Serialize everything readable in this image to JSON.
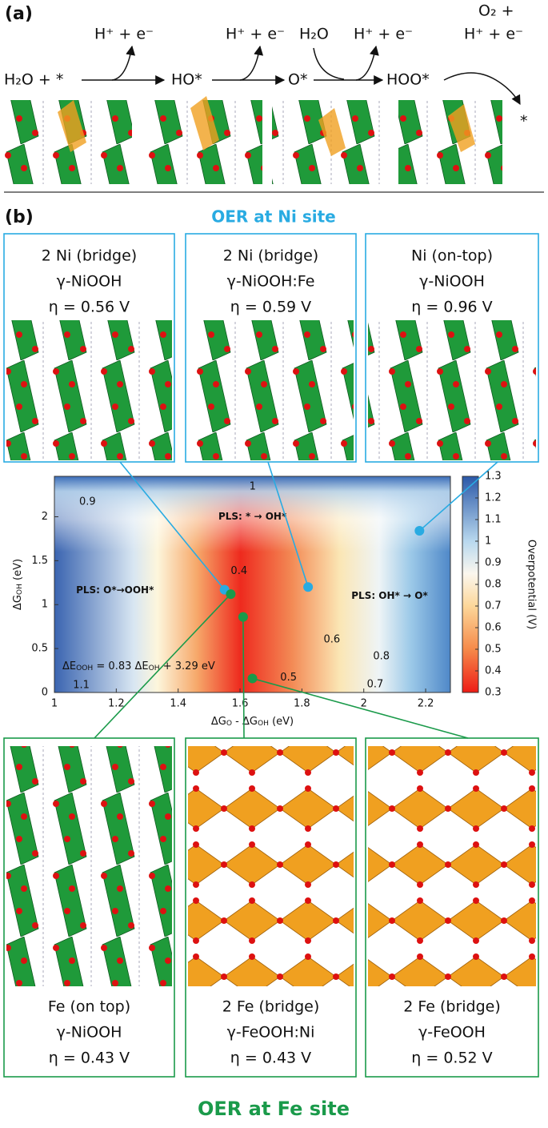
{
  "panel_a": {
    "label": "(a)",
    "texts": [
      "H₂O + *",
      "H⁺ + e⁻",
      "HO*",
      "H⁺ + e⁻",
      "O*",
      "H₂O",
      "H⁺ + e⁻",
      "HOO*",
      "O₂ +",
      "H⁺ + e⁻",
      "*"
    ]
  },
  "panel_b": {
    "label": "(b)",
    "ni_title": "OER at Ni site",
    "fe_title": "OER at Fe site",
    "ni_sites": [
      {
        "site": "2 Ni (bridge)",
        "material": "γ-NiOOH",
        "overpotential": "η = 0.56 V"
      },
      {
        "site": "2 Ni (bridge)",
        "material": "γ-NiOOH:Fe",
        "overpotential": "η = 0.59 V"
      },
      {
        "site": "Ni (on-top)",
        "material": "γ-NiOOH",
        "overpotential": "η = 0.96 V"
      }
    ],
    "fe_sites": [
      {
        "site": "Fe (on top)",
        "material": "γ-NiOOH",
        "overpotential": "η = 0.43 V"
      },
      {
        "site": "2 Fe (bridge)",
        "material": "γ-FeOOH:Ni",
        "overpotential": "η = 0.43 V"
      },
      {
        "site": "2 Fe (bridge)",
        "material": "γ-FeOOH",
        "overpotential": "η = 0.52 V"
      }
    ]
  },
  "chart_data": {
    "type": "scatter",
    "xlabel": [
      "ΔG",
      "O",
      " - ΔG",
      "OH",
      " (eV)"
    ],
    "ylabel": [
      "ΔG",
      "OH",
      " (eV)"
    ],
    "xlim": [
      1,
      2.28
    ],
    "ylim": [
      0,
      2.46
    ],
    "xticks": [
      1,
      1.2,
      1.4,
      1.6,
      1.8,
      2,
      2.2
    ],
    "yticks": [
      0,
      0.5,
      1,
      1.5,
      2
    ],
    "colorbar": {
      "label": "Overpotential (V)",
      "lim": [
        0.3,
        1.3
      ],
      "ticks": [
        0.3,
        0.4,
        0.5,
        0.6,
        0.7,
        0.8,
        0.9,
        1,
        1.1,
        1.2,
        1.3
      ]
    },
    "series": [
      {
        "color": "#29abe2",
        "x": [
          1.55,
          1.82,
          2.18
        ],
        "y": [
          1.17,
          1.2,
          1.84
        ]
      },
      {
        "color": "#1a9a4a",
        "x": [
          1.57,
          1.61,
          1.64
        ],
        "y": [
          1.12,
          0.86,
          0.16
        ]
      }
    ],
    "annotations": [
      "PLS: * → OH*",
      "PLS: O*→OOH*",
      "PLS: OH* → O*"
    ],
    "equation": [
      "ΔE",
      "OOH",
      " = 0.83 ΔE",
      "OH",
      " + 3.29 eV"
    ],
    "contour_labels": [
      1,
      0.9,
      0.4,
      0.6,
      0.8,
      0.5,
      0.7,
      1.1
    ]
  }
}
